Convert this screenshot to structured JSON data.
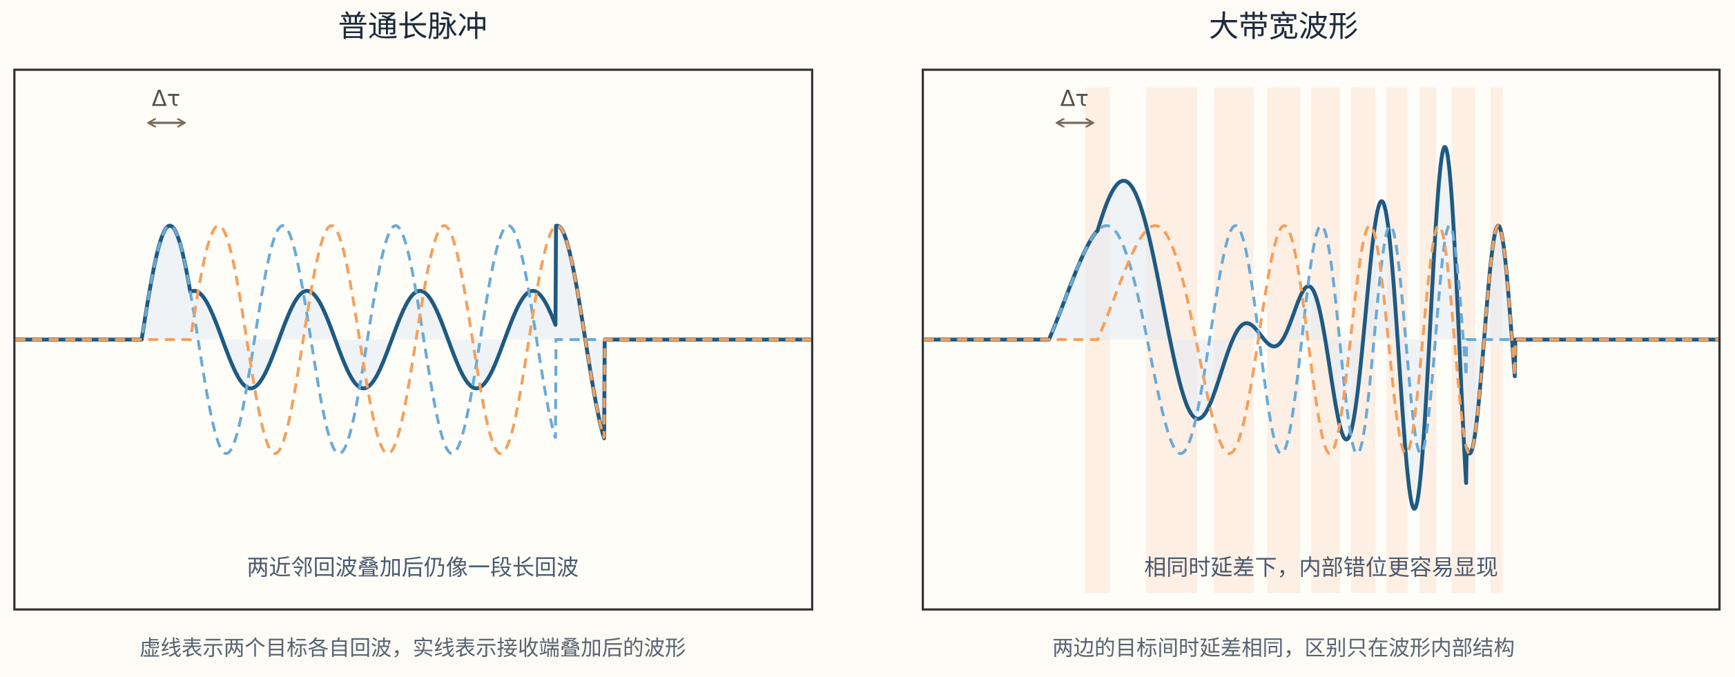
{
  "panels": [
    {
      "title": "普通长脉冲",
      "delta_label": "Δτ",
      "note": "两近邻回波叠加后仍像一段长回波",
      "caption": "虚线表示两个目标各自回波，实线表示接收端叠加后的波形"
    },
    {
      "title": "大带宽波形",
      "delta_label": "Δτ",
      "note": "相同时延差下，内部错位更容易显现",
      "caption": "两边的目标间时延差相同，区别只在波形内部结构"
    }
  ]
}
